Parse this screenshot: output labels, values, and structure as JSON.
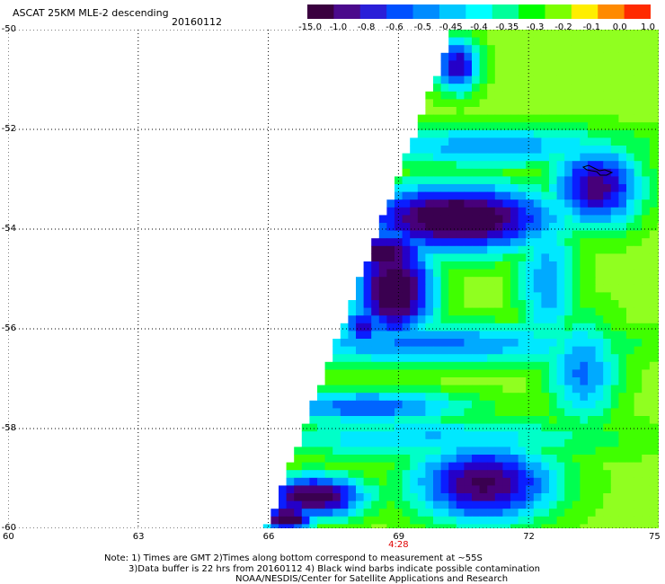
{
  "header": {
    "title": "ASCAT 25KM MLE-2 descending",
    "date": "20160112"
  },
  "colorbar": {
    "labels": [
      "-15.0",
      "-1.0",
      "-0.8",
      "-0.6",
      "-0.5",
      "-0.45",
      "-0.4",
      "-0.35",
      "-0.3",
      "-0.2",
      "-0.1",
      "0.0",
      "1.0"
    ],
    "colors": [
      "#3a003f",
      "#4b0a8c",
      "#2a1fd8",
      "#0050ff",
      "#008cff",
      "#00c8ff",
      "#00ffff",
      "#00ff9a",
      "#00ff00",
      "#7cff00",
      "#ffee00",
      "#ff8a00",
      "#ff2a00"
    ]
  },
  "axes": {
    "x_ticks": [
      "60",
      "63",
      "66",
      "69",
      "72",
      "75"
    ],
    "y_ticks": [
      "-50",
      "-52",
      "-54",
      "-56",
      "-58",
      "-60"
    ],
    "xlim": [
      60,
      75
    ],
    "ylim": [
      -60,
      -50
    ],
    "grid": true
  },
  "time_labels": [
    {
      "lon": 69,
      "text": "4:28"
    }
  ],
  "notes": {
    "line1": "Note: 1) Times are GMT 2)Times along bottom correspond to measurement at ~55S",
    "line2": "3)Data buffer is 22 hrs from 20160112 4) Black wind barbs indicate possible contamination",
    "line3": "NOAA/NESDIS/Center for Satellite Applications and Research"
  }
}
